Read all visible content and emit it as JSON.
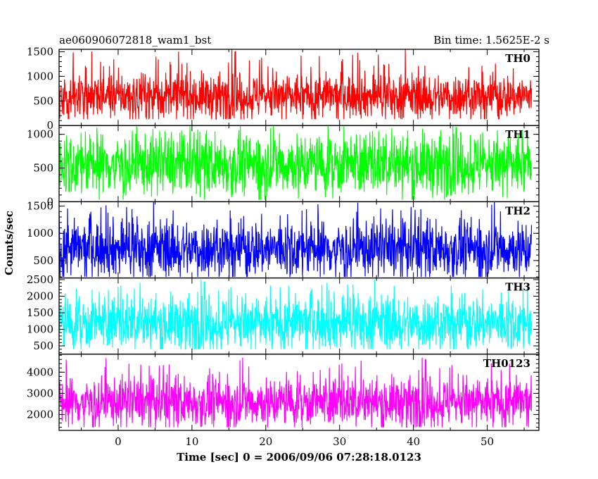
{
  "chart_data": {
    "type": "line",
    "title": "ae060906072818_wam1_bst",
    "bin_time_label": "Bin time: 1.5625E-2 s",
    "xlabel": "Time [sec] 0 = 2006/09/06 07:28:18.0123",
    "ylabel": "Counts/sec",
    "xlim": [
      -8,
      57
    ],
    "x_data_range": [
      -8,
      56
    ],
    "xticks": [
      0,
      10,
      20,
      30,
      40,
      50
    ],
    "xtick_labels": [
      "0",
      "10",
      "20",
      "30",
      "40",
      "50"
    ],
    "grid": false,
    "panels": [
      {
        "name": "TH0",
        "color": "#ff0000",
        "ylim": [
          0,
          1550
        ],
        "yticks": [
          0,
          500,
          1000,
          1500
        ],
        "ytick_labels": [
          "0",
          "500",
          "1000",
          "1500"
        ],
        "mean": 600,
        "typical_range": [
          250,
          1000
        ],
        "extreme_range": [
          130,
          1550
        ]
      },
      {
        "name": "TH1",
        "color": "#00ff00",
        "ylim": [
          0,
          1130
        ],
        "yticks": [
          0,
          500,
          1000
        ],
        "ytick_labels": [
          "0",
          "500",
          "1000"
        ],
        "mean": 560,
        "typical_range": [
          200,
          950
        ],
        "extreme_range": [
          30,
          1130
        ]
      },
      {
        "name": "TH2",
        "color": "#0000ff",
        "ylim": [
          180,
          1580
        ],
        "yticks": [
          500,
          1000,
          1500
        ],
        "ytick_labels": [
          "500",
          "1000",
          "1500"
        ],
        "mean": 720,
        "typical_range": [
          350,
          1200
        ],
        "extreme_range": [
          200,
          1580
        ]
      },
      {
        "name": "TH3",
        "color": "#00ffff",
        "ylim": [
          250,
          2550
        ],
        "yticks": [
          500,
          1000,
          1500,
          2000,
          2500
        ],
        "ytick_labels": [
          "500",
          "1000",
          "1500",
          "2000",
          "2500"
        ],
        "mean": 1200,
        "typical_range": [
          650,
          2000
        ],
        "extreme_range": [
          400,
          2500
        ]
      },
      {
        "name": "TH0123",
        "color": "#ff00ff",
        "ylim": [
          1250,
          4850
        ],
        "yticks": [
          2000,
          3000,
          4000
        ],
        "ytick_labels": [
          "2000",
          "3000",
          "4000"
        ],
        "mean": 2600,
        "typical_range": [
          1900,
          3800
        ],
        "extreme_range": [
          1400,
          4700
        ]
      }
    ]
  }
}
